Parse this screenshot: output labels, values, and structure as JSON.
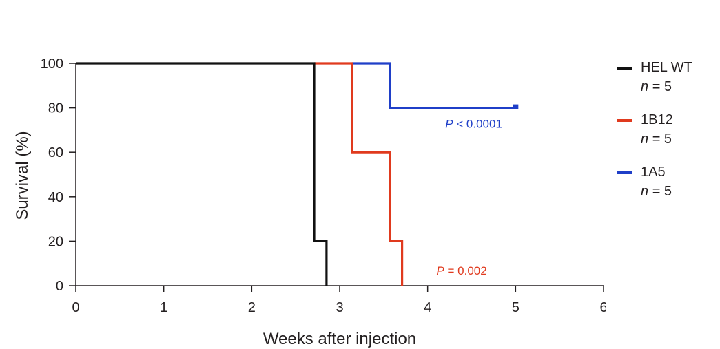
{
  "chart_data": {
    "type": "line",
    "step": true,
    "xlabel": "Weeks after injection",
    "ylabel": "Survival (%)",
    "xlim": [
      0,
      6
    ],
    "ylim": [
      0,
      100
    ],
    "xticks": [
      0,
      1,
      2,
      3,
      4,
      5,
      6
    ],
    "yticks": [
      0,
      20,
      40,
      60,
      80,
      100
    ],
    "grid": false,
    "legend_position": "right",
    "series": [
      {
        "name": "HEL WT",
        "n_label": "n = 5",
        "color": "#111111",
        "x": [
          0,
          2.71,
          2.71,
          2.85,
          2.85
        ],
        "y": [
          100,
          100,
          20,
          20,
          0
        ]
      },
      {
        "name": "1B12",
        "n_label": "n = 5",
        "color": "#e03a1e",
        "x": [
          2.71,
          3.14,
          3.14,
          3.57,
          3.57,
          3.71,
          3.71
        ],
        "y": [
          100,
          100,
          60,
          60,
          20,
          20,
          0
        ]
      },
      {
        "name": "1A5",
        "n_label": "n = 5",
        "color": "#1f3fc8",
        "x": [
          3.14,
          3.57,
          3.57,
          5.0
        ],
        "y": [
          100,
          100,
          80,
          80
        ],
        "censored": [
          {
            "x": 5.0,
            "y": 80
          }
        ]
      }
    ],
    "annotations": [
      {
        "text": "P < 0.0001",
        "color": "#1f3fc8",
        "x": 4.2,
        "y": 71
      },
      {
        "text": "P = 0.002",
        "color": "#e03a1e",
        "x": 4.1,
        "y": 5
      }
    ]
  }
}
